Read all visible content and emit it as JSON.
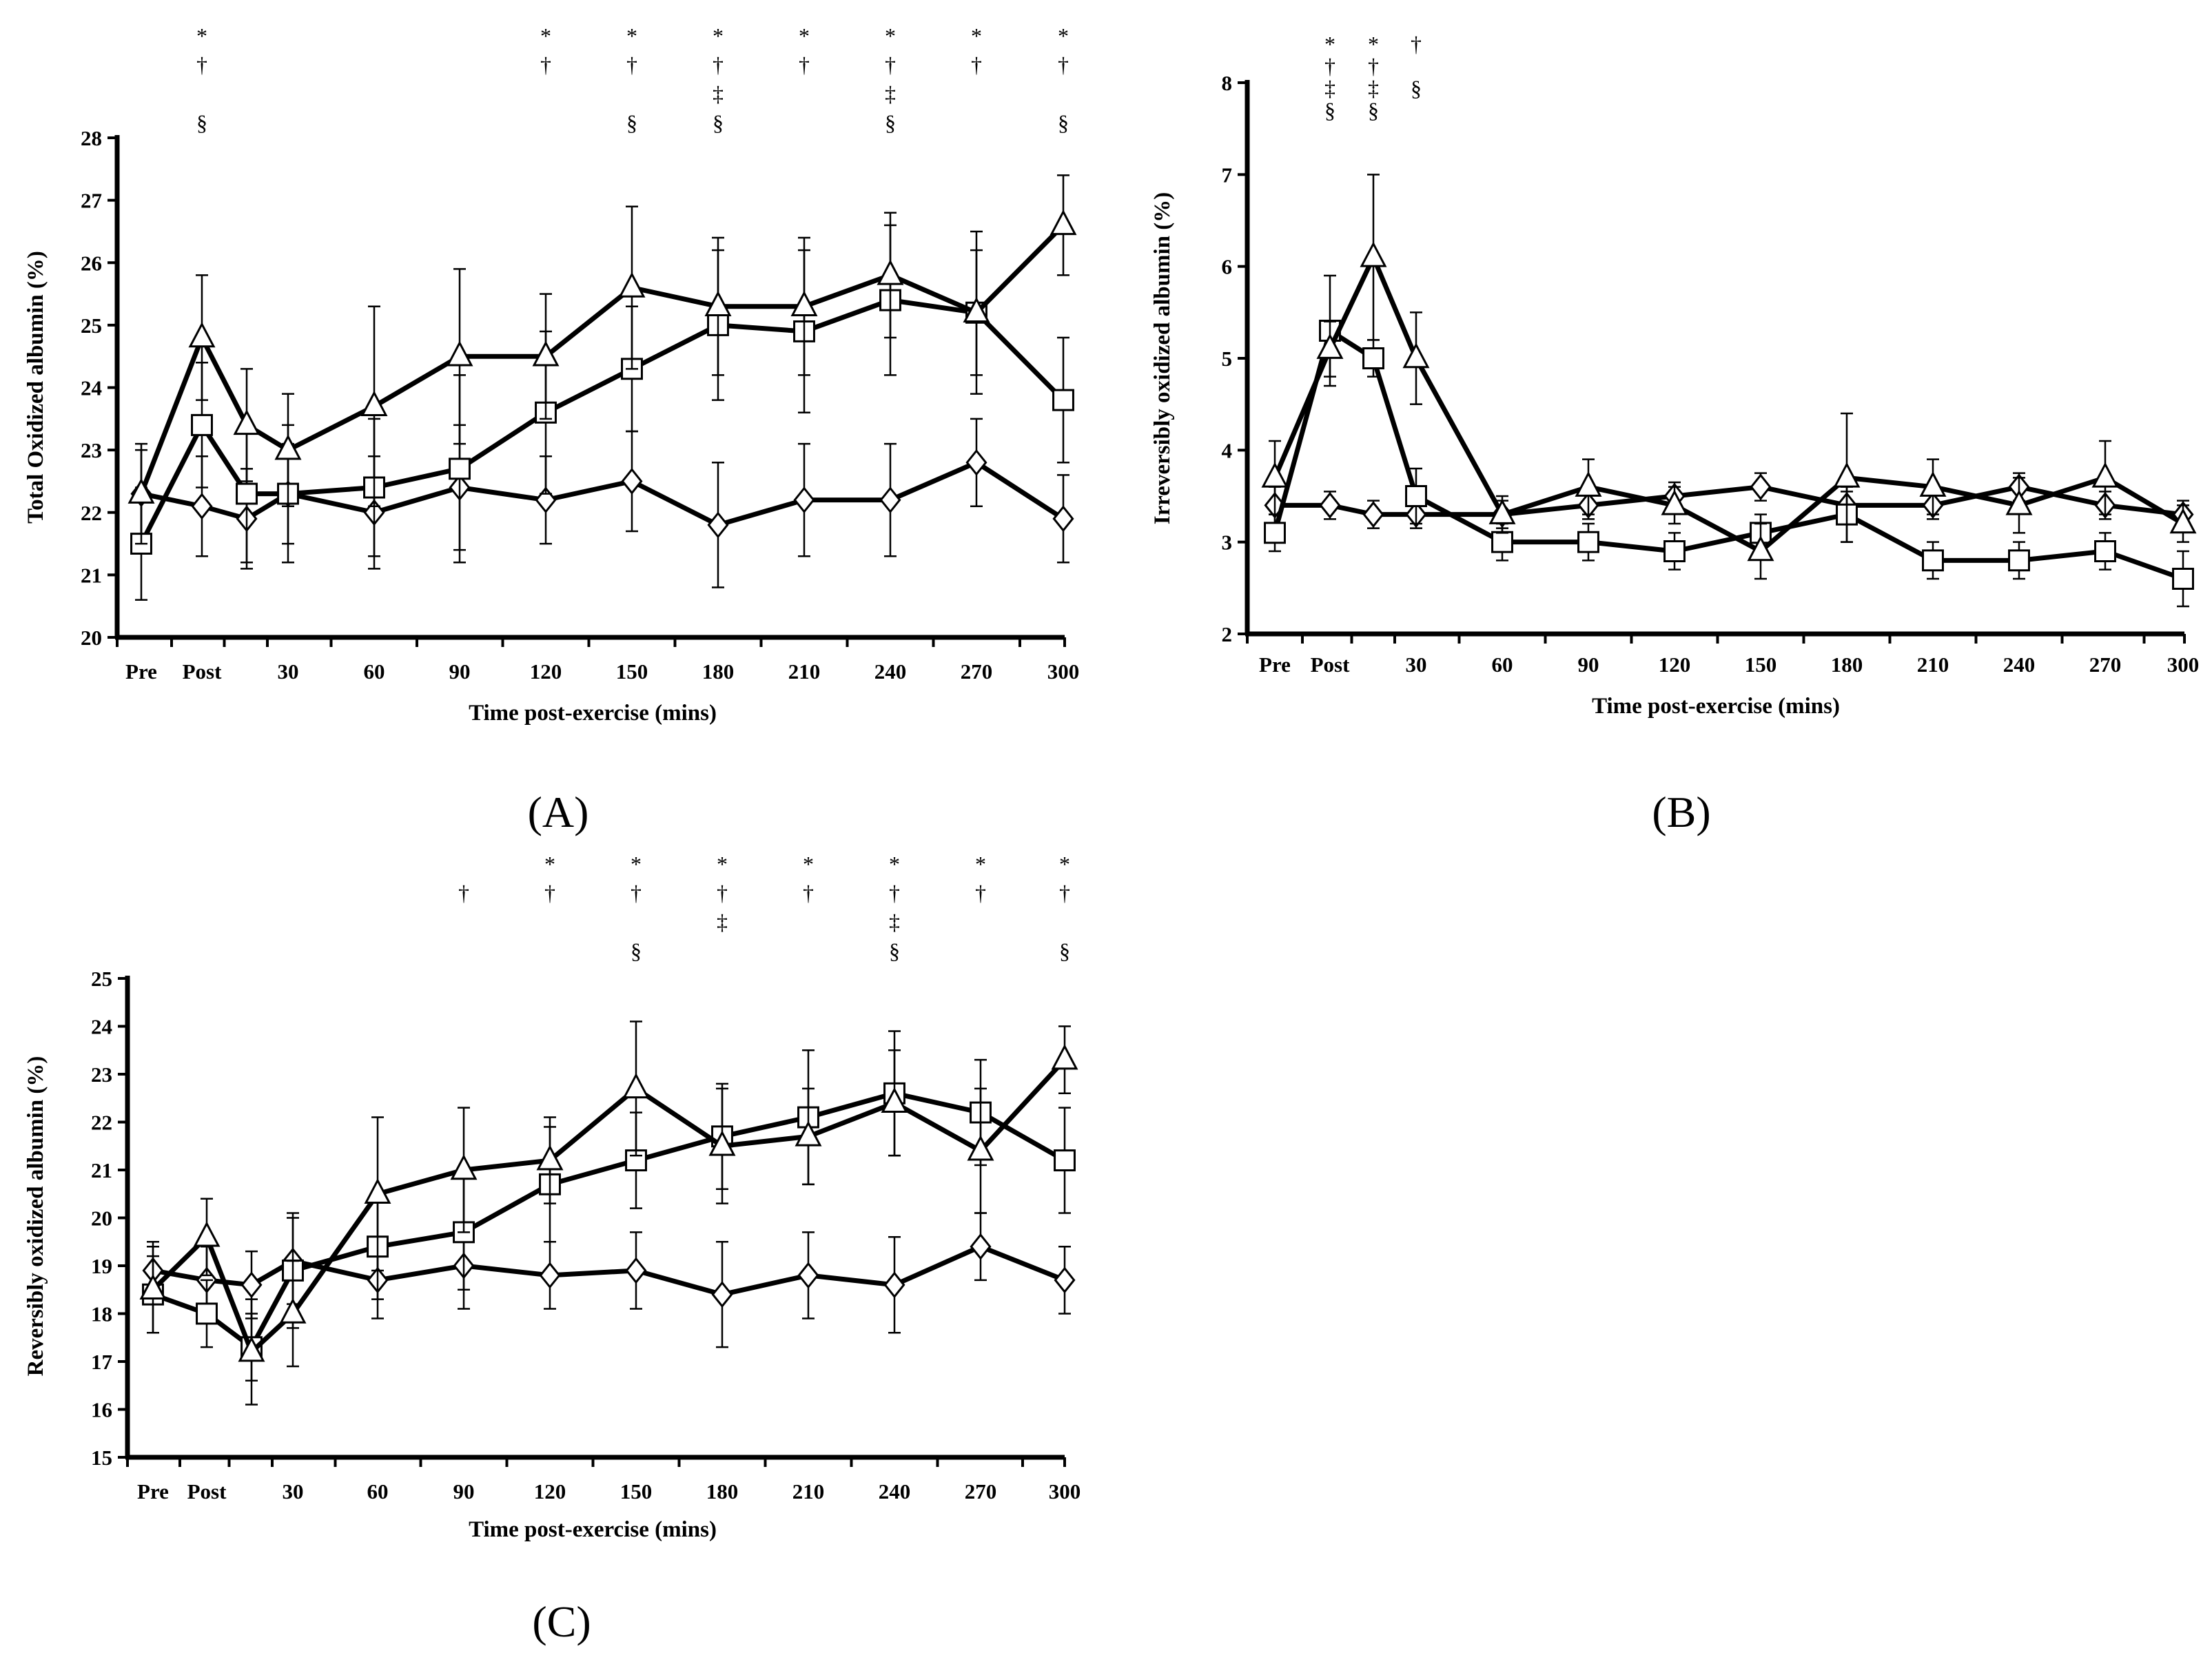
{
  "chart_data": [
    {
      "id": "A",
      "type": "line",
      "panel_label": "(A)",
      "xlabel": "Time post-exercise (mins)",
      "ylabel": "Total  Oxidized albumin (%)",
      "categories": [
        "Pre",
        "Post",
        "",
        "30",
        "60",
        "90",
        "120",
        "150",
        "180",
        "210",
        "240",
        "270",
        "300"
      ],
      "ylim": [
        20,
        28
      ],
      "yticks": [
        20,
        21,
        22,
        23,
        24,
        25,
        26,
        27,
        28
      ],
      "series": [
        {
          "name": "triangle",
          "marker": "triangle",
          "values": [
            22.3,
            24.8,
            23.4,
            23.0,
            23.7,
            24.5,
            24.5,
            25.6,
            25.3,
            25.3,
            25.8,
            25.2,
            26.6
          ],
          "errors": [
            0.8,
            1.0,
            0.9,
            0.9,
            1.6,
            1.4,
            1.0,
            1.3,
            1.1,
            1.1,
            1.0,
            1.3,
            0.8
          ]
        },
        {
          "name": "square",
          "marker": "square",
          "values": [
            21.5,
            23.4,
            22.3,
            22.3,
            22.4,
            22.7,
            23.6,
            24.3,
            25.0,
            24.9,
            25.4,
            25.2,
            23.8
          ],
          "errors": [
            0.9,
            1.0,
            1.1,
            1.1,
            1.1,
            1.5,
            1.3,
            1.0,
            1.2,
            1.3,
            1.2,
            1.0,
            1.0
          ]
        },
        {
          "name": "diamond",
          "marker": "diamond",
          "values": [
            22.3,
            22.1,
            21.9,
            22.3,
            22.0,
            22.4,
            22.2,
            22.5,
            21.8,
            22.2,
            22.2,
            22.8,
            21.9
          ],
          "errors": [
            0.7,
            0.8,
            0.8,
            0.8,
            0.9,
            1.0,
            0.7,
            0.8,
            1.0,
            0.9,
            0.9,
            0.7,
            0.7
          ]
        }
      ],
      "significance": [
        {
          "category": "Post",
          "marks": [
            "*",
            "†",
            "",
            "§"
          ]
        },
        {
          "category": "120",
          "marks": [
            "*",
            "†"
          ]
        },
        {
          "category": "150",
          "marks": [
            "*",
            "†",
            "",
            "§"
          ]
        },
        {
          "category": "180",
          "marks": [
            "*",
            "†",
            "‡",
            "§"
          ]
        },
        {
          "category": "210",
          "marks": [
            "*",
            "†"
          ]
        },
        {
          "category": "240",
          "marks": [
            "*",
            "†",
            "‡",
            "§"
          ]
        },
        {
          "category": "270",
          "marks": [
            "*",
            "†"
          ]
        },
        {
          "category": "300",
          "marks": [
            "*",
            "†",
            "",
            "§"
          ]
        }
      ]
    },
    {
      "id": "B",
      "type": "line",
      "panel_label": "(B)",
      "xlabel": "Time post-exercise (mins)",
      "ylabel": "Irreversibly oxidized albumin  (%)",
      "categories": [
        "Pre",
        "Post",
        "",
        "30",
        "60",
        "90",
        "120",
        "150",
        "180",
        "210",
        "240",
        "270",
        "300"
      ],
      "ylim": [
        2,
        8
      ],
      "yticks": [
        2,
        3,
        4,
        5,
        6,
        7,
        8
      ],
      "series": [
        {
          "name": "triangle",
          "marker": "triangle",
          "values": [
            3.7,
            5.1,
            6.1,
            5.0,
            3.3,
            3.6,
            3.4,
            2.9,
            3.7,
            3.6,
            3.4,
            3.7,
            3.2
          ],
          "errors": [
            0.4,
            0.3,
            0.9,
            0.5,
            0.2,
            0.3,
            0.2,
            0.3,
            0.7,
            0.3,
            0.3,
            0.4,
            0.2
          ]
        },
        {
          "name": "square",
          "marker": "square",
          "values": [
            3.1,
            5.3,
            5.0,
            3.5,
            3.0,
            3.0,
            2.9,
            3.1,
            3.3,
            2.8,
            2.8,
            2.9,
            2.6
          ],
          "errors": [
            0.2,
            0.6,
            0.2,
            0.3,
            0.2,
            0.2,
            0.2,
            0.2,
            0.3,
            0.2,
            0.2,
            0.2,
            0.3
          ]
        },
        {
          "name": "diamond",
          "marker": "diamond",
          "values": [
            3.4,
            3.4,
            3.3,
            3.3,
            3.3,
            3.4,
            3.5,
            3.6,
            3.4,
            3.4,
            3.6,
            3.4,
            3.3
          ],
          "errors": [
            0.2,
            0.15,
            0.15,
            0.15,
            0.15,
            0.15,
            0.15,
            0.15,
            0.15,
            0.15,
            0.15,
            0.15,
            0.15
          ]
        }
      ],
      "significance": [
        {
          "category": "Post",
          "marks": [
            "*",
            "†",
            "‡",
            "§"
          ]
        },
        {
          "category": "",
          "marks": [
            "*",
            "†",
            "‡",
            "§"
          ]
        },
        {
          "category": "30",
          "marks": [
            "†",
            "",
            "§"
          ]
        }
      ]
    },
    {
      "id": "C",
      "type": "line",
      "panel_label": "(C)",
      "xlabel": "Time post-exercise (mins)",
      "ylabel": "Reversibly oxidized albumin (%)",
      "categories": [
        "Pre",
        "Post",
        "",
        "30",
        "60",
        "90",
        "120",
        "150",
        "180",
        "210",
        "240",
        "270",
        "300"
      ],
      "ylim": [
        15,
        25
      ],
      "yticks": [
        15,
        16,
        17,
        18,
        19,
        20,
        21,
        22,
        23,
        24,
        25
      ],
      "series": [
        {
          "name": "triangle",
          "marker": "triangle",
          "values": [
            18.5,
            19.6,
            17.2,
            18.0,
            20.5,
            21.0,
            21.2,
            22.7,
            21.5,
            21.7,
            22.4,
            21.4,
            23.3
          ],
          "errors": [
            0.9,
            0.8,
            1.1,
            1.1,
            1.6,
            1.3,
            0.9,
            1.4,
            1.2,
            1.0,
            1.1,
            1.3,
            0.7
          ]
        },
        {
          "name": "square",
          "marker": "square",
          "values": [
            18.4,
            18.0,
            17.3,
            18.9,
            19.4,
            19.7,
            20.7,
            21.2,
            21.7,
            22.1,
            22.6,
            22.2,
            21.2
          ],
          "errors": [
            0.8,
            0.7,
            0.7,
            1.2,
            1.1,
            1.2,
            1.2,
            1.0,
            1.1,
            1.4,
            1.3,
            1.1,
            1.1
          ]
        },
        {
          "name": "diamond",
          "marker": "diamond",
          "values": [
            18.9,
            18.7,
            18.6,
            19.1,
            18.7,
            19.0,
            18.8,
            18.9,
            18.4,
            18.8,
            18.6,
            19.4,
            18.7
          ],
          "errors": [
            0.6,
            0.7,
            0.7,
            0.9,
            0.8,
            0.9,
            0.7,
            0.8,
            1.1,
            0.9,
            1.0,
            0.7,
            0.7
          ]
        }
      ],
      "significance": [
        {
          "category": "90",
          "marks": [
            "",
            "†"
          ]
        },
        {
          "category": "120",
          "marks": [
            "*",
            "†"
          ]
        },
        {
          "category": "150",
          "marks": [
            "*",
            "†",
            "",
            "§"
          ]
        },
        {
          "category": "180",
          "marks": [
            "*",
            "†",
            "‡"
          ]
        },
        {
          "category": "210",
          "marks": [
            "*",
            "†"
          ]
        },
        {
          "category": "240",
          "marks": [
            "*",
            "†",
            "‡",
            "§"
          ]
        },
        {
          "category": "270",
          "marks": [
            "*",
            "†"
          ]
        },
        {
          "category": "300",
          "marks": [
            "*",
            "†",
            "",
            "§"
          ]
        }
      ]
    }
  ]
}
